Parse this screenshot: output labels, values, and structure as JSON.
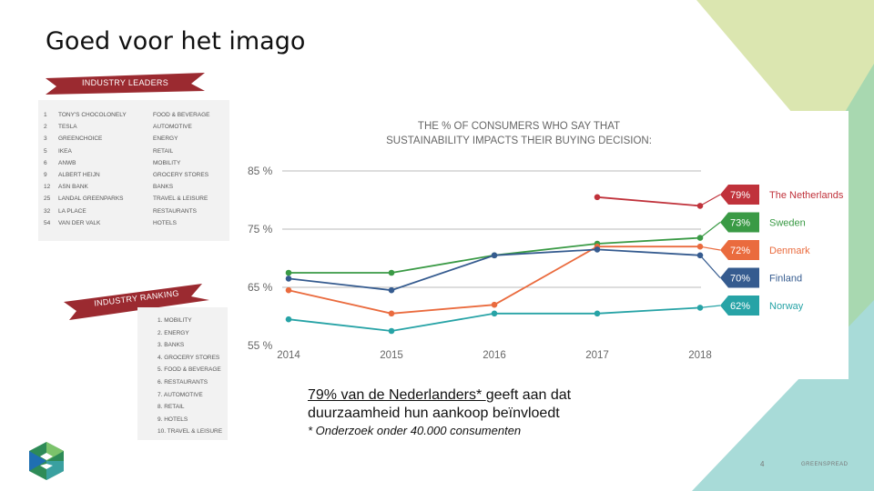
{
  "slide": {
    "title": "Goed voor het imago",
    "page_number": "4",
    "brand": "GREENSPREAD"
  },
  "leaders": {
    "banner": "INDUSTRY LEADERS",
    "rows": [
      {
        "rank": "1",
        "name": "TONY'S CHOCOLONELY",
        "sector": "FOOD & BEVERAGE"
      },
      {
        "rank": "2",
        "name": "TESLA",
        "sector": "AUTOMOTIVE"
      },
      {
        "rank": "3",
        "name": "GREENCHOICE",
        "sector": "ENERGY"
      },
      {
        "rank": "5",
        "name": "IKEA",
        "sector": "RETAIL"
      },
      {
        "rank": "6",
        "name": "ANWB",
        "sector": "MOBILITY"
      },
      {
        "rank": "9",
        "name": "ALBERT HEIJN",
        "sector": "GROCERY STORES"
      },
      {
        "rank": "12",
        "name": "ASN BANK",
        "sector": "BANKS"
      },
      {
        "rank": "25",
        "name": "LANDAL GREENPARKS",
        "sector": "TRAVEL & LEISURE"
      },
      {
        "rank": "32",
        "name": "LA PLACE",
        "sector": "RESTAURANTS"
      },
      {
        "rank": "54",
        "name": "VAN DER VALK",
        "sector": "HOTELS"
      }
    ]
  },
  "ranking": {
    "banner": "INDUSTRY RANKING",
    "items": [
      "1. MOBILITY",
      "2. ENERGY",
      "3. BANKS",
      "4. GROCERY STORES",
      "5. FOOD & BEVERAGE",
      "6. RESTAURANTS",
      "7. AUTOMOTIVE",
      "8. RETAIL",
      "9. HOTELS",
      "10. TRAVEL & LEISURE"
    ]
  },
  "chart_data": {
    "type": "line",
    "title": "THE % OF CONSUMERS WHO SAY THAT",
    "subtitle": "SUSTAINABILITY IMPACTS THEIR BUYING DECISION:",
    "x": [
      "2014",
      "2015",
      "2016",
      "2017",
      "2018"
    ],
    "ylim": [
      55,
      85
    ],
    "yticks": [
      55,
      65,
      75,
      85
    ],
    "ytick_labels": [
      "55 %",
      "65 %",
      "75 %",
      "85 %"
    ],
    "grid": "horizontal",
    "legend": "right",
    "series": [
      {
        "name": "The Netherlands",
        "label": "79%",
        "color": "#c0323b",
        "values": [
          null,
          null,
          null,
          80.5,
          79
        ]
      },
      {
        "name": "Sweden",
        "label": "73%",
        "color": "#3a9a45",
        "values": [
          67.5,
          67.5,
          70.5,
          72.5,
          73.5
        ]
      },
      {
        "name": "Denmark",
        "label": "72%",
        "color": "#ea6b3e",
        "values": [
          64.5,
          60.5,
          62,
          72,
          72
        ]
      },
      {
        "name": "Finland",
        "label": "70%",
        "color": "#355b8f",
        "values": [
          66.5,
          64.5,
          70.5,
          71.5,
          70.5
        ]
      },
      {
        "name": "Norway",
        "label": "62%",
        "color": "#27a3a6",
        "values": [
          59.5,
          57.5,
          60.5,
          60.5,
          61.5
        ]
      }
    ]
  },
  "caption": {
    "underlined": "79% van de Nederlanders* ",
    "rest_line1": "geeft aan dat",
    "line2": "duurzaamheid hun aankoop beïnvloedt",
    "footnote": "* Onderzoek onder 40.000 consumenten"
  },
  "colors": {
    "banner": "#9b2a30",
    "deco_light_green": "#dbe6b0",
    "deco_green": "#a8d8b0",
    "deco_teal": "#a8dbd8"
  }
}
